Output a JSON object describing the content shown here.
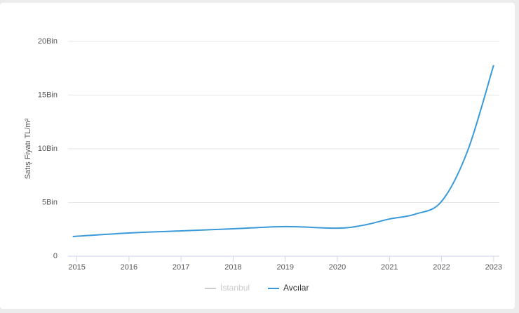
{
  "chart_data": {
    "type": "line",
    "y_label": "Satış Fiyatı TL/m²",
    "x": [
      2014.92,
      2016,
      2017,
      2018,
      2019,
      2020,
      2020.5,
      2021,
      2021.5,
      2022,
      2022.5,
      2023
    ],
    "series": [
      {
        "name": "İstanbul",
        "color": "#cccccc",
        "values": [
          null,
          null,
          null,
          null,
          null,
          null,
          null,
          null,
          null,
          null,
          null,
          null
        ]
      },
      {
        "name": "Avcılar",
        "color": "#3a9ad9",
        "values": [
          1830,
          2160,
          2350,
          2550,
          2750,
          2610,
          2880,
          3460,
          3920,
          5100,
          9800,
          17780
        ]
      }
    ],
    "xlim": [
      2014.83,
      2023.11
    ],
    "xticks": [
      2015,
      2016,
      2017,
      2018,
      2019,
      2020,
      2021,
      2022,
      2023
    ],
    "ylim": [
      0,
      20000
    ],
    "yticks": [
      0,
      {
        "value": 5000,
        "label": "5Bin"
      },
      {
        "value": 10000,
        "label": "10Bin"
      },
      {
        "value": 15000,
        "label": "15Bin"
      },
      {
        "value": 20000,
        "label": "20Bin"
      }
    ],
    "grid": true
  }
}
